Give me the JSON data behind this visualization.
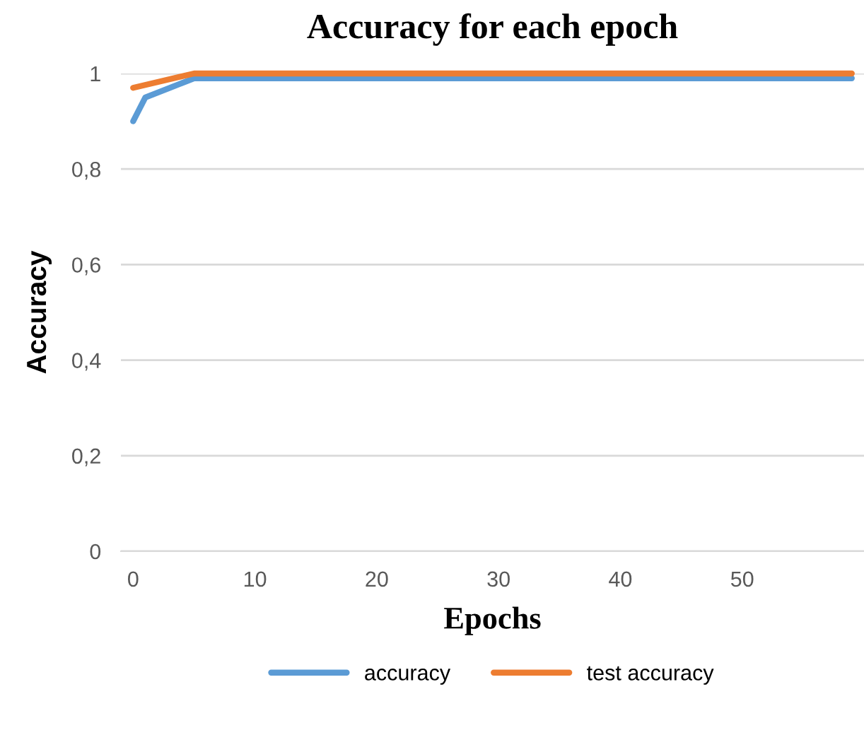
{
  "chart_data": {
    "type": "line",
    "title": "Accuracy for each epoch",
    "xlabel": "Epochs",
    "ylabel": "Accuracy",
    "series": [
      {
        "name": "accuracy",
        "color": "#5b9bd5",
        "x": [
          0,
          1,
          2,
          3,
          4,
          5,
          59
        ],
        "values": [
          0.9,
          0.95,
          0.96,
          0.97,
          0.98,
          0.99,
          0.99
        ]
      },
      {
        "name": "test accuracy",
        "color": "#ed7d31",
        "x": [
          0,
          5,
          59
        ],
        "values": [
          0.97,
          1.0,
          1.0
        ]
      }
    ],
    "xlim": [
      -1,
      60
    ],
    "xticks": [
      0,
      10,
      20,
      30,
      40,
      50
    ],
    "ylim": [
      0,
      1
    ],
    "yticks": [
      {
        "value": 0,
        "label": "0"
      },
      {
        "value": 0.2,
        "label": "0,2"
      },
      {
        "value": 0.4,
        "label": "0,4"
      },
      {
        "value": 0.6,
        "label": "0,6"
      },
      {
        "value": 0.8,
        "label": "0,8"
      },
      {
        "value": 1,
        "label": "1"
      }
    ],
    "grid": "y",
    "legend": "bottom",
    "marker": "none",
    "line_style": "solid"
  }
}
